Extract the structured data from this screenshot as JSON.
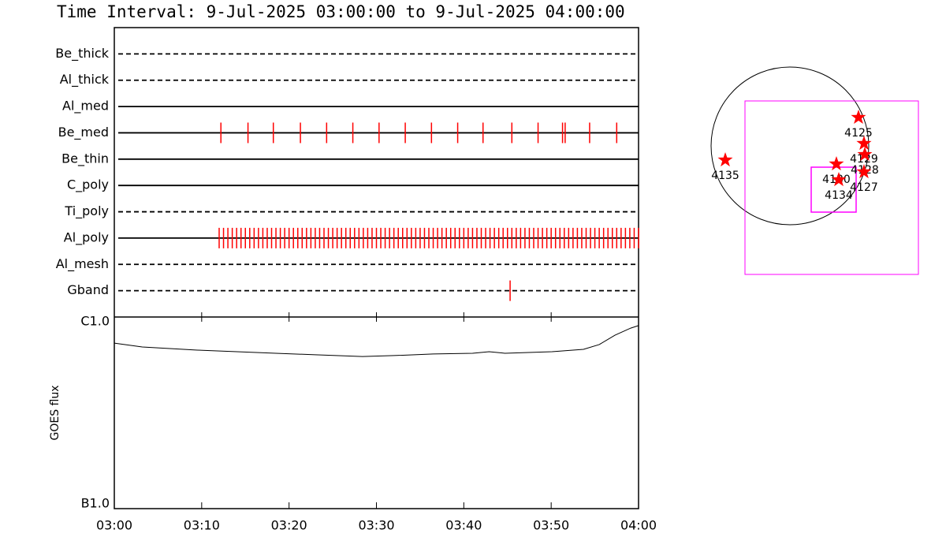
{
  "chart_data": [
    {
      "type": "timeline",
      "title": "Time Interval:  9-Jul-2025 03:00:00 to  9-Jul-2025 04:00:00",
      "categories": [
        "Be_thick",
        "Al_thick",
        "Al_med",
        "Be_med",
        "Be_thin",
        "C_poly",
        "Ti_poly",
        "Al_poly",
        "Al_mesh",
        "Gband"
      ],
      "line_styles": [
        "dashed",
        "dashed",
        "solid",
        "solid",
        "solid",
        "solid",
        "dashed",
        "solid",
        "dashed",
        "dashed"
      ],
      "color": "#ff0000",
      "xlim": [
        0,
        60
      ],
      "events": [
        [],
        [],
        [],
        [
          12.2,
          15.3,
          18.2,
          21.3,
          24.3,
          27.3,
          30.3,
          33.3,
          36.3,
          39.3,
          42.2,
          45.5,
          48.5,
          51.3,
          51.6,
          54.4,
          57.5
        ],
        [],
        [],
        [],
        [
          12.0,
          12.5,
          13.0,
          13.5,
          14.0,
          14.5,
          15.0,
          15.5,
          16.0,
          16.5,
          17.0,
          17.5,
          18.0,
          18.5,
          19.0,
          19.5,
          20.0,
          20.5,
          21.0,
          21.5,
          22.0,
          22.5,
          23.0,
          23.5,
          24.0,
          24.5,
          25.0,
          25.5,
          26.0,
          26.5,
          27.0,
          27.5,
          28.0,
          28.5,
          29.0,
          29.5,
          30.0,
          30.5,
          31.0,
          31.5,
          32.0,
          32.5,
          33.0,
          33.5,
          34.0,
          34.5,
          35.0,
          35.5,
          36.0,
          36.5,
          37.0,
          37.5,
          38.0,
          38.5,
          39.0,
          39.5,
          40.0,
          40.5,
          41.0,
          41.5,
          42.0,
          42.5,
          43.0,
          43.5,
          44.0,
          44.5,
          45.0,
          45.5,
          46.0,
          46.5,
          47.0,
          47.5,
          48.0,
          48.5,
          49.0,
          49.5,
          50.0,
          50.5,
          51.0,
          51.5,
          52.0,
          52.5,
          53.0,
          53.5,
          54.0,
          54.5,
          55.0,
          55.5,
          56.0,
          56.5,
          57.0,
          57.5,
          58.0,
          58.5,
          59.0,
          59.5,
          60.0
        ],
        [],
        [
          45.3
        ]
      ]
    },
    {
      "type": "line",
      "ylabel": "GOES flux",
      "log_scale": true,
      "color": "#000000",
      "x": [
        0,
        3.2,
        9.5,
        18.5,
        23,
        28.4,
        32,
        36.5,
        41,
        42.9,
        44.7,
        50.1,
        53.7,
        55.5,
        57.3,
        59.1,
        60
      ],
      "values": [
        7.31e-07,
        6.98e-07,
        6.72e-07,
        6.47e-07,
        6.35e-07,
        6.22e-07,
        6.29e-07,
        6.41e-07,
        6.47e-07,
        6.59e-07,
        6.47e-07,
        6.59e-07,
        6.78e-07,
        7.18e-07,
        8.04e-07,
        8.75e-07,
        9.02e-07
      ],
      "xlim": [
        0,
        60
      ],
      "xticks": [
        {
          "value": 0,
          "label": "03:00"
        },
        {
          "value": 10,
          "label": "03:10"
        },
        {
          "value": 20,
          "label": "03:20"
        },
        {
          "value": 30,
          "label": "03:30"
        },
        {
          "value": 40,
          "label": "03:40"
        },
        {
          "value": 50,
          "label": "03:50"
        },
        {
          "value": 60,
          "label": "04:00"
        }
      ],
      "ylim": [
        1e-07,
        1e-06
      ],
      "yticks": [
        {
          "value": 1e-07,
          "label": "B1.0"
        },
        {
          "value": 1e-06,
          "label": "C1.0"
        }
      ]
    },
    {
      "type": "scatter",
      "color": "#ff0000",
      "x": [
        835,
        902,
        912,
        902,
        566,
        595,
        -787
      ],
      "y": [
        346,
        29,
        -106,
        -317,
        -221,
        -413,
        -173
      ],
      "labels": [
        "4125",
        "4129",
        "4128",
        "4127",
        "4130",
        "4134",
        "4135"
      ]
    }
  ]
}
